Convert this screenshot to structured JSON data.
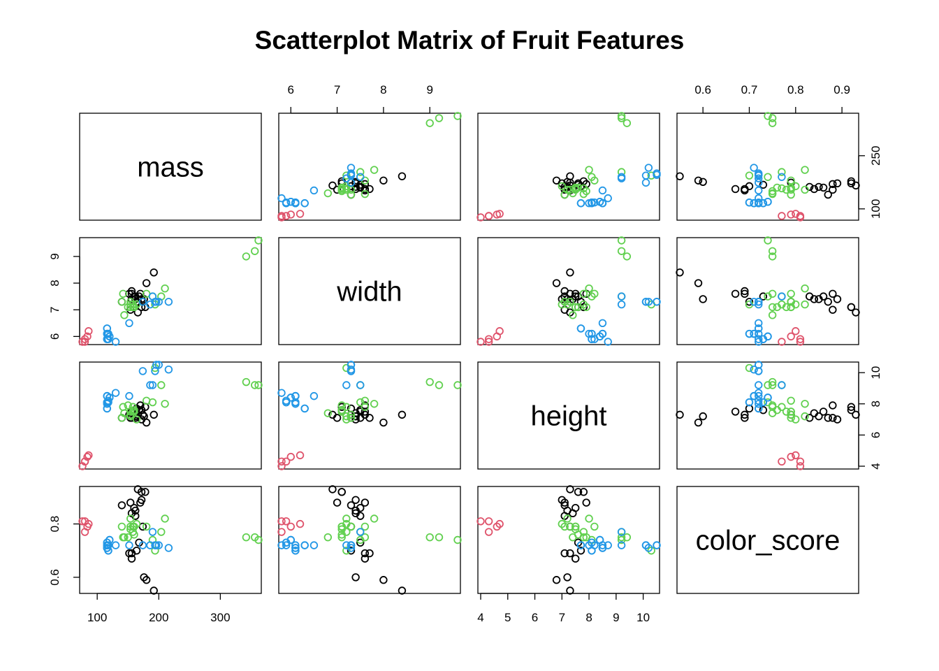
{
  "chart_data": {
    "type": "scatter",
    "title": "Scatterplot Matrix of Fruit Features",
    "variables": [
      "mass",
      "width",
      "height",
      "color_score"
    ],
    "ranges": {
      "mass": [
        76,
        362
      ],
      "width": [
        5.8,
        9.6
      ],
      "height": [
        4.0,
        10.5
      ],
      "color_score": [
        0.55,
        0.93
      ]
    },
    "ticks": {
      "mass": [
        100,
        200,
        300
      ],
      "mass_right": [
        100,
        250
      ],
      "width": [
        6,
        7,
        8,
        9
      ],
      "height": [
        4,
        5,
        6,
        7,
        8,
        9,
        10
      ],
      "height_right": [
        4,
        6,
        8,
        10
      ],
      "color_score": [
        0.6,
        0.7,
        0.8,
        0.9
      ],
      "color_score_left": [
        0.6,
        0.8
      ]
    },
    "tick_labels": {
      "mass": [
        "100",
        "200",
        "300"
      ],
      "mass_right": [
        "100",
        "250"
      ],
      "width": [
        "6",
        "7",
        "8",
        "9"
      ],
      "height": [
        "4",
        "5",
        "6",
        "7",
        "8",
        "9",
        "10"
      ],
      "height_right": [
        "4",
        "6",
        "8",
        "10"
      ],
      "color_score": [
        "0.6",
        "0.7",
        "0.8",
        "0.9"
      ],
      "color_score_left": [
        "0.6",
        "0.8"
      ]
    },
    "group_colors": {
      "black": "#000000",
      "red": "#DF536B",
      "green": "#61D04F",
      "blue": "#2297E6"
    },
    "grid": false,
    "legend": "none",
    "series": [
      {
        "color": "black",
        "points": [
          [
            192,
            8.4,
            7.3,
            0.55
          ],
          [
            180,
            8.0,
            6.8,
            0.59
          ],
          [
            176,
            7.4,
            7.2,
            0.6
          ],
          [
            178,
            7.1,
            7.8,
            0.92
          ],
          [
            172,
            7.4,
            7.0,
            0.89
          ],
          [
            166,
            6.9,
            7.3,
            0.93
          ],
          [
            172,
            7.1,
            7.6,
            0.92
          ],
          [
            154,
            7.0,
            7.1,
            0.88
          ],
          [
            164,
            7.3,
            7.7,
            0.7
          ],
          [
            152,
            7.6,
            7.3,
            0.69
          ],
          [
            156,
            7.7,
            7.1,
            0.69
          ],
          [
            156,
            7.6,
            7.5,
            0.67
          ],
          [
            168,
            7.5,
            7.6,
            0.73
          ],
          [
            162,
            7.5,
            7.1,
            0.83
          ],
          [
            162,
            7.4,
            7.2,
            0.85
          ],
          [
            160,
            7.5,
            7.5,
            0.86
          ],
          [
            156,
            7.4,
            7.4,
            0.84
          ],
          [
            140,
            7.3,
            7.1,
            0.87
          ],
          [
            170,
            7.6,
            7.9,
            0.88
          ],
          [
            174,
            7.3,
            7.3,
            0.79
          ]
        ]
      },
      {
        "color": "red",
        "points": [
          [
            86,
            6.2,
            4.7,
            0.8
          ],
          [
            84,
            6.0,
            4.6,
            0.79
          ],
          [
            80,
            5.8,
            4.3,
            0.77
          ],
          [
            80,
            5.9,
            4.3,
            0.81
          ],
          [
            76,
            5.8,
            4.0,
            0.81
          ]
        ]
      },
      {
        "color": "green",
        "points": [
          [
            342,
            9.0,
            9.4,
            0.75
          ],
          [
            356,
            9.2,
            9.2,
            0.75
          ],
          [
            362,
            9.6,
            9.2,
            0.74
          ],
          [
            204,
            7.5,
            9.2,
            0.77
          ],
          [
            140,
            7.3,
            7.1,
            0.79
          ],
          [
            160,
            7.1,
            7.5,
            0.79
          ],
          [
            158,
            7.1,
            7.5,
            0.79
          ],
          [
            210,
            7.8,
            8.0,
            0.82
          ],
          [
            164,
            7.2,
            7.0,
            0.8
          ],
          [
            190,
            7.5,
            8.1,
            0.74
          ],
          [
            142,
            7.6,
            7.8,
            0.75
          ],
          [
            150,
            7.1,
            7.9,
            0.75
          ],
          [
            160,
            7.1,
            7.6,
            0.76
          ],
          [
            154,
            7.3,
            7.3,
            0.79
          ],
          [
            158,
            7.2,
            7.8,
            0.77
          ],
          [
            144,
            6.8,
            7.4,
            0.75
          ],
          [
            154,
            7.1,
            7.5,
            0.78
          ],
          [
            180,
            7.6,
            8.2,
            0.79
          ],
          [
            154,
            7.2,
            7.2,
            0.82
          ],
          [
            194,
            7.2,
            10.3,
            0.7
          ]
        ]
      },
      {
        "color": "blue",
        "points": [
          [
            116,
            6.1,
            8.5,
            0.71
          ],
          [
            116,
            6.3,
            7.7,
            0.72
          ],
          [
            116,
            5.9,
            8.1,
            0.73
          ],
          [
            116,
            6.1,
            8.5,
            0.71
          ],
          [
            118,
            6.1,
            8.1,
            0.7
          ],
          [
            120,
            6.0,
            8.4,
            0.74
          ],
          [
            116,
            6.1,
            8.0,
            0.72
          ],
          [
            116,
            6.3,
            7.7,
            0.72
          ],
          [
            116,
            5.9,
            8.1,
            0.73
          ],
          [
            152,
            6.5,
            8.5,
            0.72
          ],
          [
            118,
            6.1,
            8.1,
            0.7
          ],
          [
            120,
            6.0,
            8.4,
            0.74
          ],
          [
            116,
            6.1,
            8.5,
            0.71
          ],
          [
            130,
            5.8,
            8.7,
            0.72
          ],
          [
            118,
            5.9,
            8.2,
            0.72
          ],
          [
            190,
            7.5,
            9.2,
            0.77
          ],
          [
            194,
            7.3,
            10.1,
            0.72
          ],
          [
            200,
            7.3,
            10.5,
            0.72
          ],
          [
            186,
            7.2,
            9.2,
            0.72
          ],
          [
            216,
            7.3,
            10.2,
            0.71
          ],
          [
            196,
            7.3,
            10.5,
            0.72
          ],
          [
            174,
            7.3,
            10.1,
            0.72
          ]
        ]
      }
    ]
  }
}
